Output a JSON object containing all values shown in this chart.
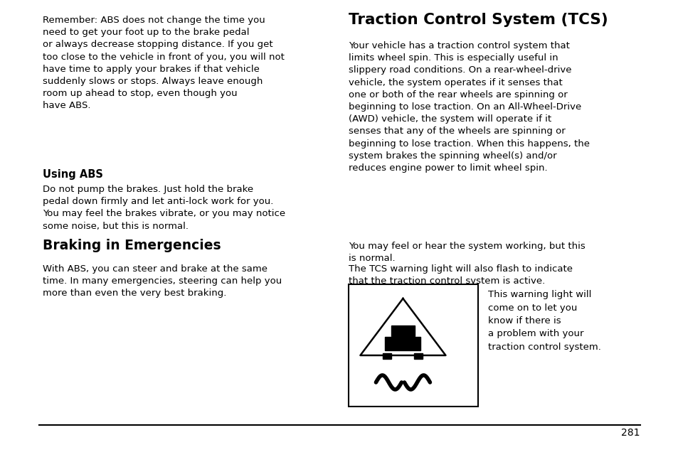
{
  "bg_color": "#ffffff",
  "text_color": "#000000",
  "page_number": "281",
  "para1": "Remember: ABS does not change the time you\nneed to get your foot up to the brake pedal\nor always decrease stopping distance. If you get\ntoo close to the vehicle in front of you, you will not\nhave time to apply your brakes if that vehicle\nsuddenly slows or stops. Always leave enough\nroom up ahead to stop, even though you\nhave ABS.",
  "subhead1": "Using ABS",
  "para2": "Do not pump the brakes. Just hold the brake\npedal down firmly and let anti-lock work for you.\nYou may feel the brakes vibrate, or you may notice\nsome noise, but this is normal.",
  "head2": "Braking in Emergencies",
  "para3": "With ABS, you can steer and brake at the same\ntime. In many emergencies, steering can help you\nmore than even the very best braking.",
  "right_head": "Traction Control System (TCS)",
  "right_para1": "Your vehicle has a traction control system that\nlimits wheel spin. This is especially useful in\nslippery road conditions. On a rear-wheel-drive\nvehicle, the system operates if it senses that\none or both of the rear wheels are spinning or\nbeginning to lose traction. On an All-Wheel-Drive\n(AWD) vehicle, the system will operate if it\nsenses that any of the wheels are spinning or\nbeginning to lose traction. When this happens, the\nsystem brakes the spinning wheel(s) and/or\nreduces engine power to limit wheel spin.",
  "right_para2": "You may feel or hear the system working, but this\nis normal.",
  "right_para3": "The TCS warning light will also flash to indicate\nthat the traction control system is active.",
  "warning_text": "This warning light will\ncome on to let you\nknow if there is\na problem with your\ntraction control system.",
  "font_size_body": 9.5,
  "font_size_subhead": 10.5,
  "font_size_head": 13.5,
  "font_size_right_head": 15.5,
  "font_size_page": 10.0
}
